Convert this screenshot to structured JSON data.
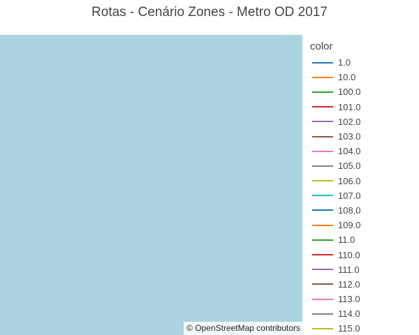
{
  "title": "Rotas - Cenário Zones - Metro OD 2017",
  "map": {
    "background_color": "#aad3df",
    "attribution": "© OpenStreetMap contributors"
  },
  "legend": {
    "title": "color",
    "items": [
      {
        "label": "1.0",
        "color": "#1f77b4"
      },
      {
        "label": "10.0",
        "color": "#ff7f0e"
      },
      {
        "label": "100.0",
        "color": "#2ca02c"
      },
      {
        "label": "101.0",
        "color": "#d62728"
      },
      {
        "label": "102.0",
        "color": "#9467bd"
      },
      {
        "label": "103.0",
        "color": "#8c564b"
      },
      {
        "label": "104.0",
        "color": "#e377c2"
      },
      {
        "label": "105.0",
        "color": "#7f7f7f"
      },
      {
        "label": "106.0",
        "color": "#bcbd22"
      },
      {
        "label": "107.0",
        "color": "#17becf"
      },
      {
        "label": "108.0",
        "color": "#1f77b4"
      },
      {
        "label": "109.0",
        "color": "#ff7f0e"
      },
      {
        "label": "11.0",
        "color": "#2ca02c"
      },
      {
        "label": "110.0",
        "color": "#d62728"
      },
      {
        "label": "111.0",
        "color": "#9467bd"
      },
      {
        "label": "112.0",
        "color": "#8c564b"
      },
      {
        "label": "113.0",
        "color": "#e377c2"
      },
      {
        "label": "114.0",
        "color": "#7f7f7f"
      },
      {
        "label": "115.0",
        "color": "#bcbd22"
      }
    ]
  }
}
